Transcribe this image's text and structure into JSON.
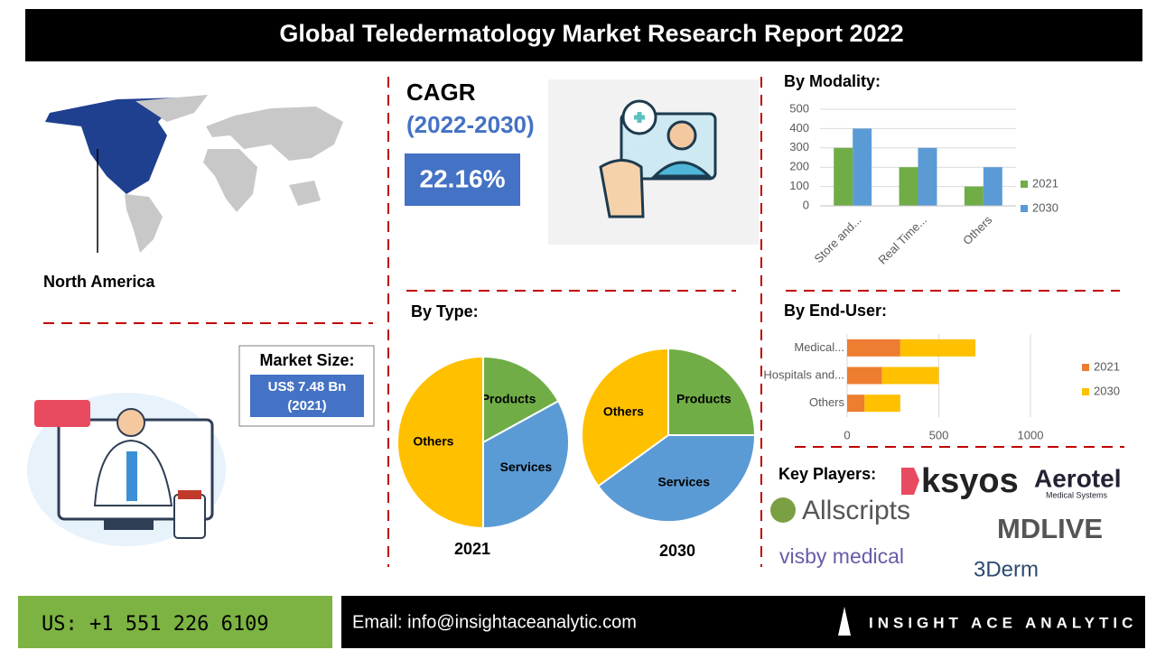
{
  "header": {
    "title": "Global Teledermatology Market Research Report 2022"
  },
  "region": {
    "label": "North America"
  },
  "cagr": {
    "title": "CAGR",
    "period": "(2022-2030)",
    "value": "22.16%"
  },
  "market_size": {
    "title": "Market Size:",
    "value": "US$ 7.48 Bn",
    "year": "(2021)"
  },
  "chart_data": [
    {
      "type": "bar",
      "title": "By Modality:",
      "categories": [
        "Store and...",
        "Real Time...",
        "Others"
      ],
      "series": [
        {
          "name": "2021",
          "color": "#70ad47",
          "values": [
            300,
            200,
            100
          ]
        },
        {
          "name": "2030",
          "color": "#5b9bd5",
          "values": [
            400,
            300,
            200
          ]
        }
      ],
      "ylim": [
        0,
        500
      ],
      "yticks": [
        0,
        100,
        200,
        300,
        400,
        500
      ],
      "grid": true,
      "legend": "right"
    },
    {
      "type": "barh",
      "title": "By End-User:",
      "categories": [
        "Medical...",
        "Hospitals and...",
        "Others"
      ],
      "series": [
        {
          "name": "2021",
          "color": "#ed7d31",
          "values": [
            290,
            190,
            95
          ]
        },
        {
          "name": "2030",
          "color": "#ffc000",
          "values": [
            410,
            310,
            195
          ]
        }
      ],
      "xlim": [
        0,
        1000
      ],
      "xticks": [
        0,
        500,
        1000
      ],
      "grid": true,
      "legend": "right",
      "stacked": true
    },
    {
      "type": "pie",
      "title": "2021",
      "categories": [
        "Products",
        "Services",
        "Others"
      ],
      "values": [
        17,
        33,
        50
      ],
      "colors": [
        "#70ad47",
        "#5b9bd5",
        "#ffc000"
      ]
    },
    {
      "type": "pie",
      "title": "2030",
      "categories": [
        "Products",
        "Services",
        "Others"
      ],
      "values": [
        25,
        40,
        35
      ],
      "colors": [
        "#70ad47",
        "#5b9bd5",
        "#ffc000"
      ]
    }
  ],
  "by_type": {
    "title": "By Type:"
  },
  "key_players": {
    "title": "Key Players:",
    "logos": [
      "ksyos",
      "Aerotel",
      "Medical Systems",
      "Allscripts",
      "MDLIVE",
      "visby medical",
      "3Derm"
    ]
  },
  "footer": {
    "phone": "US: +1 551 226 6109",
    "email": "Email: info@insightaceanalytic.com",
    "brand": "INSIGHT ACE ANALYTIC"
  }
}
